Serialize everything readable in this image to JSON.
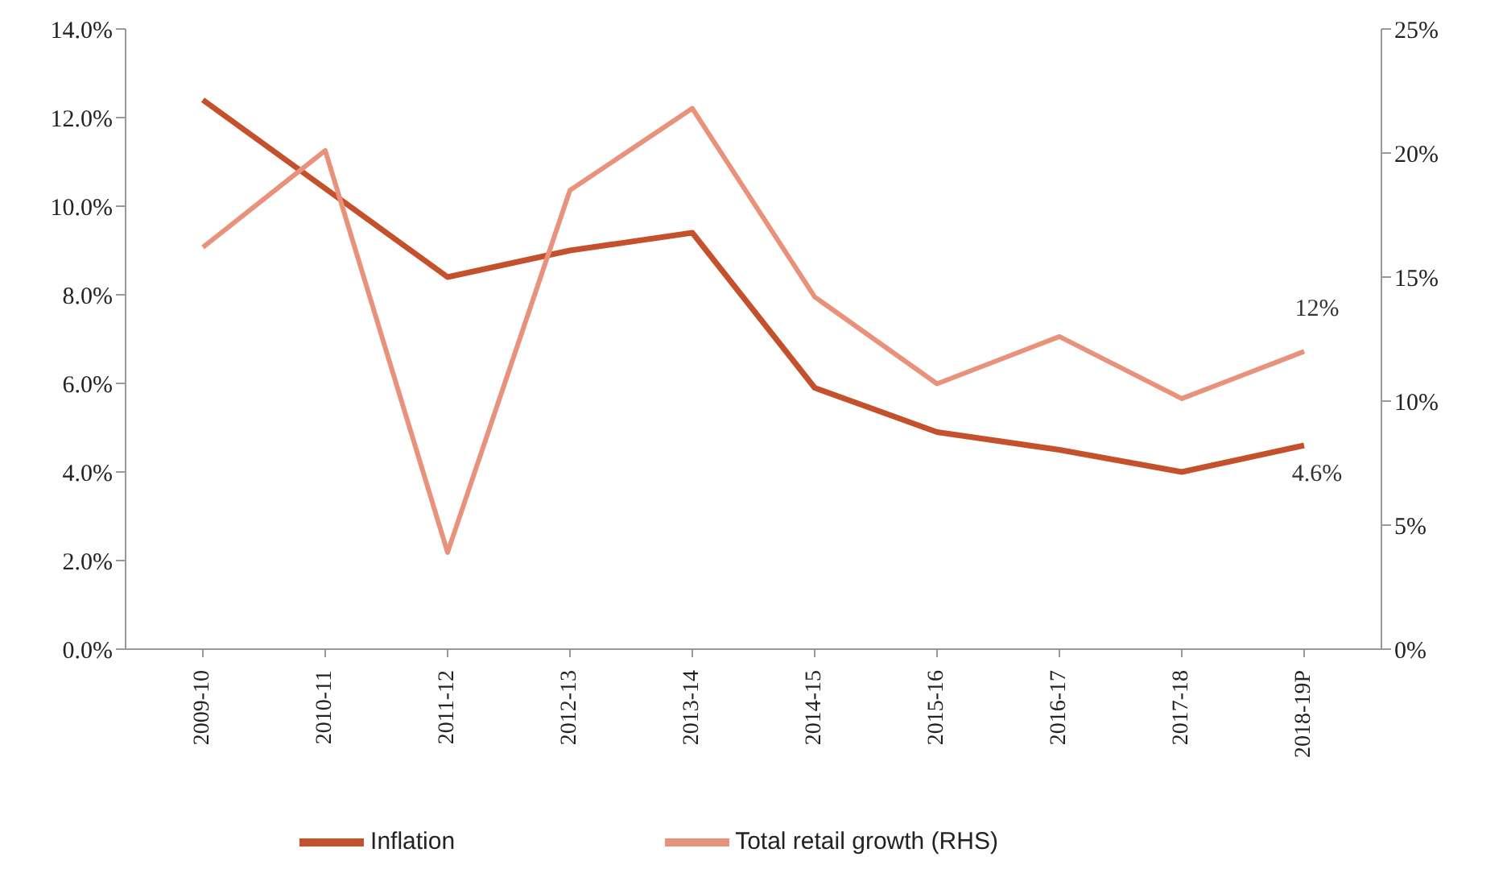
{
  "chart_data": {
    "type": "line",
    "categories": [
      "2009-10",
      "2010-11",
      "2011-12",
      "2012-13",
      "2013-14",
      "2014-15",
      "2015-16",
      "2016-17",
      "2017-18",
      "2018-19P"
    ],
    "series": [
      {
        "name": "Inflation",
        "color": "#c4502c",
        "values": [
          12.4,
          10.4,
          8.4,
          9.0,
          9.4,
          5.9,
          4.9,
          4.5,
          4.0,
          4.6
        ],
        "value_labels": [
          null,
          null,
          null,
          null,
          null,
          null,
          null,
          null,
          null,
          "4.6%"
        ]
      },
      {
        "name": "Total retail growth (RHS)",
        "color": "#e9927b",
        "axis": "y2",
        "values": [
          16.2,
          20.1,
          3.9,
          18.5,
          21.8,
          14.2,
          10.7,
          12.6,
          10.1,
          12.0
        ],
        "value_labels": [
          null,
          null,
          null,
          null,
          null,
          null,
          null,
          null,
          null,
          "12%"
        ]
      }
    ],
    "ylim": [
      0,
      14
    ],
    "yticks": [
      {
        "value": 0,
        "label": "0.0%"
      },
      {
        "value": 2,
        "label": "2.0%"
      },
      {
        "value": 4,
        "label": "4.0%"
      },
      {
        "value": 6,
        "label": "6.0%"
      },
      {
        "value": 8,
        "label": "8.0%"
      },
      {
        "value": 10,
        "label": "10.0%"
      },
      {
        "value": 12,
        "label": "12.0%"
      },
      {
        "value": 14,
        "label": "14.0%"
      }
    ],
    "y2lim": [
      0,
      25
    ],
    "y2ticks": [
      {
        "value": 0,
        "label": "0%"
      },
      {
        "value": 5,
        "label": "5%"
      },
      {
        "value": 10,
        "label": "10%"
      },
      {
        "value": 15,
        "label": "15%"
      },
      {
        "value": 20,
        "label": "20%"
      },
      {
        "value": 25,
        "label": "25%"
      }
    ],
    "grid": false,
    "legend": "bottom",
    "marker": "none",
    "line_style": "solid"
  }
}
